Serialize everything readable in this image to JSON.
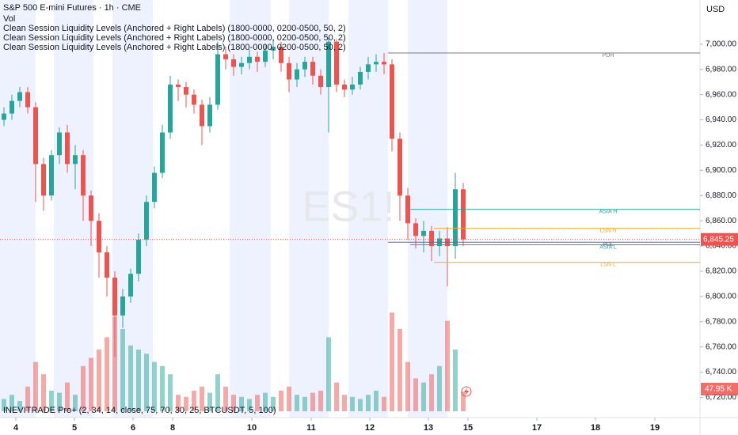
{
  "chart_data": {
    "type": "candlestick",
    "title": "S&P 500 E-mini Futures · 1h · CME",
    "legend_lines": [
      "Vol",
      "Clean Session Liquidity Levels (Anchored + Right Labels) (1800-0000, 0200-0500, 50, 2)",
      "Clean Session Liquidity Levels (Anchored + Right Labels) (1800-0000, 0200-0500, 50, 2)",
      "Clean Session Liquidity Levels (Anchored + Right Labels) (1800-0000, 0200-0500, 50, 2)"
    ],
    "indicator_label": "INEVITRADE Pro+ (2, 34, 14, close, 75, 70, 30, 25, BTCUSDT, 5, 100)",
    "currency": "USD",
    "watermark": "ES1!",
    "xlim": [
      -0.5,
      87.9
    ],
    "xticks": [
      {
        "value": 1.5,
        "label": "4"
      },
      {
        "value": 8.9,
        "label": "5"
      },
      {
        "value": 16.3,
        "label": "6"
      },
      {
        "value": 21.3,
        "label": "8"
      },
      {
        "value": 31.3,
        "label": "10"
      },
      {
        "value": 38.8,
        "label": "11"
      },
      {
        "value": 46.2,
        "label": "12"
      },
      {
        "value": 53.6,
        "label": "13"
      },
      {
        "value": 58.6,
        "label": "15"
      },
      {
        "value": 67.3,
        "label": "17"
      },
      {
        "value": 74.7,
        "label": "18"
      },
      {
        "value": 82.2,
        "label": "19"
      }
    ],
    "ylim": [
      6709,
      7035
    ],
    "yticks": [
      {
        "value": 6720,
        "label": "6,720.00"
      },
      {
        "value": 6740,
        "label": "6,740.00"
      },
      {
        "value": 6760,
        "label": "6,760.00"
      },
      {
        "value": 6780,
        "label": "6,780.00"
      },
      {
        "value": 6800,
        "label": "6,800.00"
      },
      {
        "value": 6820,
        "label": "6,820.00"
      },
      {
        "value": 6840,
        "label": "6,840.00"
      },
      {
        "value": 6860,
        "label": "6,860.00"
      },
      {
        "value": 6880,
        "label": "6,880.00"
      },
      {
        "value": 6900,
        "label": "6,900.00"
      },
      {
        "value": 6920,
        "label": "6,920.00"
      },
      {
        "value": 6940,
        "label": "6,940.00"
      },
      {
        "value": 6960,
        "label": "6,960.00"
      },
      {
        "value": 6980,
        "label": "6,980.00"
      },
      {
        "value": 7000,
        "label": "7,000.00"
      }
    ],
    "up_color": "#26a69a",
    "down_color": "#ef5350",
    "x": [
      0,
      1,
      2,
      3,
      4,
      5,
      6,
      7,
      8,
      9,
      10,
      11,
      12,
      13,
      14,
      15,
      16,
      17,
      18,
      19,
      20,
      21,
      22,
      23,
      24,
      25,
      26,
      27,
      28,
      29,
      30,
      31,
      32,
      33,
      34,
      35,
      36,
      37,
      38,
      39,
      40,
      41,
      42,
      43,
      44,
      45,
      46,
      47,
      48,
      49,
      50,
      51,
      52,
      53,
      54,
      55,
      56,
      57,
      58
    ],
    "open": [
      6940,
      6945,
      6955,
      6962,
      6950,
      6905,
      6880,
      6912,
      6930,
      6905,
      6912,
      6880,
      6860,
      6835,
      6815,
      6785,
      6800,
      6818,
      6845,
      6875,
      6898,
      6930,
      6968,
      6966,
      6960,
      6952,
      6935,
      6952,
      6992,
      6988,
      6982,
      6985,
      6990,
      6986,
      6995,
      6998,
      6985,
      6972,
      6980,
      6986,
      6975,
      6966,
      7002,
      6968,
      6964,
      6968,
      6978,
      6984,
      6986,
      6984,
      6925,
      6880,
      6858,
      6848,
      6852,
      6840,
      6846,
      6840,
      6885
    ],
    "high": [
      6950,
      6960,
      6966,
      6966,
      6954,
      6910,
      6916,
      6934,
      6936,
      6920,
      6916,
      6884,
      6866,
      6840,
      6820,
      6806,
      6822,
      6850,
      6880,
      6903,
      6936,
      6975,
      6972,
      6970,
      6964,
      6956,
      6958,
      7002,
      6998,
      6992,
      6990,
      6996,
      6994,
      7000,
      7004,
      7002,
      6990,
      6985,
      6990,
      6990,
      6980,
      7005,
      7004,
      6972,
      6974,
      6982,
      6990,
      6992,
      6993,
      6988,
      6930,
      6886,
      6862,
      6860,
      6856,
      6852,
      6855,
      6898,
      6890
    ],
    "low": [
      6935,
      6940,
      6950,
      6945,
      6875,
      6868,
      6876,
      6905,
      6898,
      6885,
      6860,
      6840,
      6815,
      6800,
      6752,
      6775,
      6795,
      6812,
      6840,
      6870,
      6894,
      6925,
      6955,
      6950,
      6945,
      6920,
      6930,
      6948,
      6980,
      6975,
      6976,
      6980,
      6978,
      6982,
      6988,
      6978,
      6962,
      6966,
      6974,
      6968,
      6960,
      6930,
      6962,
      6958,
      6960,
      6964,
      6972,
      6978,
      6976,
      6915,
      6860,
      6845,
      6838,
      6835,
      6828,
      6832,
      6808,
      6830,
      6840
    ],
    "close": [
      6945,
      6955,
      6962,
      6950,
      6905,
      6880,
      6912,
      6930,
      6905,
      6912,
      6880,
      6860,
      6835,
      6815,
      6785,
      6800,
      6818,
      6845,
      6875,
      6898,
      6930,
      6968,
      6966,
      6960,
      6952,
      6935,
      6952,
      6992,
      6988,
      6982,
      6985,
      6990,
      6986,
      6995,
      6998,
      6985,
      6972,
      6980,
      6986,
      6975,
      6966,
      7002,
      6968,
      6964,
      6968,
      6978,
      6984,
      6986,
      6984,
      6925,
      6880,
      6858,
      6848,
      6852,
      6840,
      6846,
      6840,
      6885,
      6845.25
    ],
    "volume": {
      "values": [
        30,
        40,
        25,
        60,
        120,
        90,
        50,
        45,
        70,
        40,
        110,
        130,
        150,
        180,
        230,
        200,
        160,
        150,
        140,
        120,
        110,
        90,
        40,
        35,
        50,
        60,
        45,
        90,
        60,
        40,
        35,
        30,
        40,
        45,
        35,
        50,
        60,
        40,
        35,
        45,
        50,
        180,
        70,
        40,
        35,
        30,
        40,
        50,
        35,
        240,
        200,
        120,
        80,
        70,
        90,
        110,
        220,
        150,
        47.95
      ],
      "ylim": [
        0,
        1000
      ],
      "last_label": "47.95 K"
    },
    "last_price": {
      "value": 6845.25,
      "label": "6,845.25"
    },
    "levels": [
      {
        "name": "PDH",
        "value": 6993,
        "x": 48.5,
        "color": "#787b86"
      },
      {
        "name": "ASIA H",
        "value": 6869,
        "x": 51.3,
        "color": "#26a69a"
      },
      {
        "name": "LSN H",
        "value": 6854,
        "x": 54.3,
        "color": "#f5a623"
      },
      {
        "name": "PDL",
        "value": 6843,
        "x": 48.5,
        "color": "#5b6b8c"
      },
      {
        "name": "ASIA L",
        "value": 6841,
        "x": 51.3,
        "color": "#26a69a"
      },
      {
        "name": "LSN L",
        "value": 6827,
        "x": 54.3,
        "color": "#f5a623"
      }
    ]
  }
}
